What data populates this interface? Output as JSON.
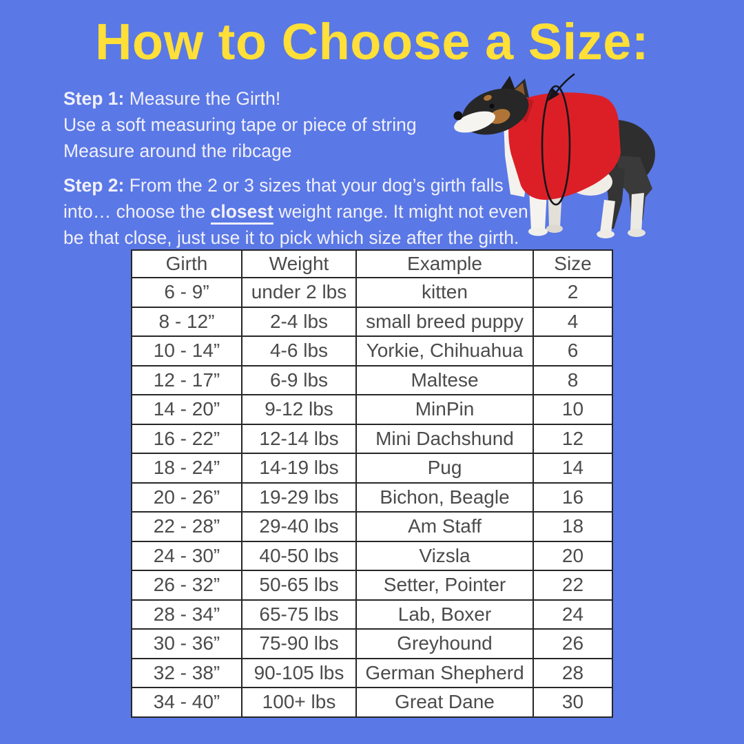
{
  "title": "How to Choose a Size:",
  "steps": {
    "step1": {
      "label": "Step 1:",
      "heading": "Measure the Girth!",
      "line2": "Use a soft measuring tape or piece of string",
      "line3": "Measure around the ribcage"
    },
    "step2": {
      "label": "Step 2:",
      "line1_rest": "From the 2 or 3 sizes that your dog’s girth falls",
      "line2_before": "into… choose the",
      "line2_emphasis": "closest",
      "line2_after": "weight range. It might not even",
      "line3": "be that close, just use it to pick which size after the girth."
    }
  },
  "dog": {
    "description": "Dog wearing a red fleece vest, with a hand-drawn loop arrow showing where to measure the girth around the ribcage"
  },
  "table": {
    "headers": [
      "Girth",
      "Weight",
      "Example",
      "Size"
    ],
    "rows": [
      [
        "6 - 9”",
        "under 2 lbs",
        "kitten",
        "2"
      ],
      [
        "8 - 12”",
        "2-4 lbs",
        "small breed puppy",
        "4"
      ],
      [
        "10 - 14”",
        "4-6 lbs",
        "Yorkie, Chihuahua",
        "6"
      ],
      [
        "12 - 17”",
        "6-9 lbs",
        "Maltese",
        "8"
      ],
      [
        "14 - 20”",
        "9-12 lbs",
        "MinPin",
        "10"
      ],
      [
        "16 - 22”",
        "12-14 lbs",
        "Mini Dachshund",
        "12"
      ],
      [
        "18 - 24”",
        "14-19 lbs",
        "Pug",
        "14"
      ],
      [
        "20 - 26”",
        "19-29 lbs",
        "Bichon, Beagle",
        "16"
      ],
      [
        "22 - 28”",
        "29-40 lbs",
        "Am Staff",
        "18"
      ],
      [
        "24 - 30”",
        "40-50 lbs",
        "Vizsla",
        "20"
      ],
      [
        "26 - 32”",
        "50-65 lbs",
        "Setter, Pointer",
        "22"
      ],
      [
        "28 - 34”",
        "65-75 lbs",
        "Lab, Boxer",
        "24"
      ],
      [
        "30 - 36”",
        "75-90 lbs",
        "Greyhound",
        "26"
      ],
      [
        "32 - 38”",
        "90-105 lbs",
        "German Shepherd",
        "28"
      ],
      [
        "34 - 40”",
        "100+ lbs",
        "Great Dane",
        "30"
      ]
    ]
  },
  "colors": {
    "background": "#5a78e6",
    "title": "#ffdf38",
    "body_text": "#f1f0fa",
    "table_text": "#4b4b4b",
    "table_border": "#262626",
    "table_bg": "#ffffff",
    "vest_red": "#dc1f27"
  }
}
